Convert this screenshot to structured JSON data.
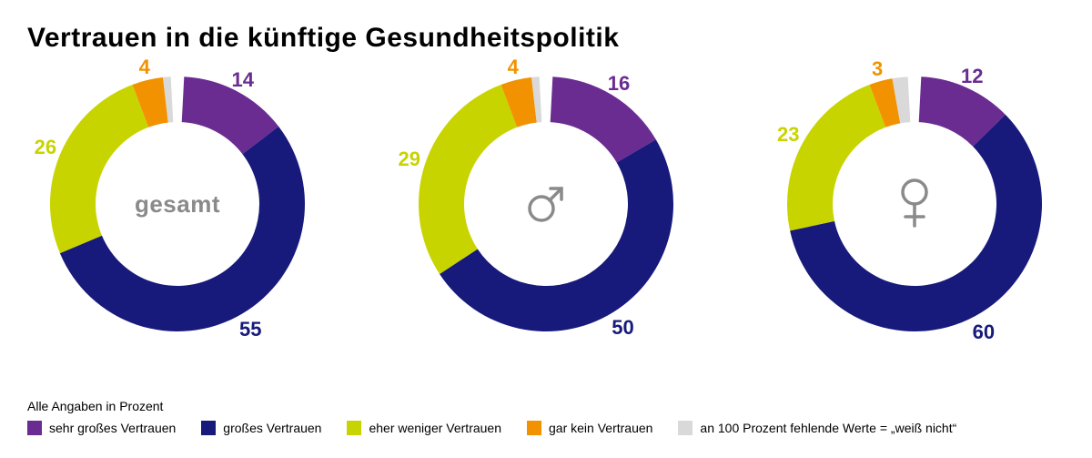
{
  "title": "Vertrauen in die künftige Gesundheitspolitik",
  "footnote": "Alle Angaben in Prozent",
  "colors": {
    "sehr_gross": "#6a2c91",
    "gross": "#171a7a",
    "eher_weniger": "#c8d400",
    "gar_kein": "#f39200",
    "weiss_nicht": "#d9d9d9",
    "center_text": "#8a8a8a",
    "icon": "#8a8a8a"
  },
  "chart": {
    "type": "donut",
    "outer_radius": 140,
    "inner_radius": 90,
    "start_angle_deg": -90,
    "gap_deg": 6,
    "label_fontsize": 22,
    "center_fontsize": 26,
    "size": 290
  },
  "legend": [
    {
      "key": "sehr_gross",
      "label": "sehr großes Vertrauen"
    },
    {
      "key": "gross",
      "label": "großes Vertrauen"
    },
    {
      "key": "eher_weniger",
      "label": "eher weniger Vertrauen"
    },
    {
      "key": "gar_kein",
      "label": "gar kein Vertrauen"
    },
    {
      "key": "weiss_nicht",
      "label": "an 100 Prozent fehlende Werte = „weiß nicht“"
    }
  ],
  "charts": [
    {
      "id": "gesamt",
      "center_type": "text",
      "center_text": "gesamt",
      "segments": [
        {
          "key": "sehr_gross",
          "value": 14,
          "show_label": true
        },
        {
          "key": "gross",
          "value": 55,
          "show_label": true
        },
        {
          "key": "eher_weniger",
          "value": 26,
          "show_label": true
        },
        {
          "key": "gar_kein",
          "value": 4,
          "show_label": true
        },
        {
          "key": "weiss_nicht",
          "value": 1,
          "show_label": false
        }
      ]
    },
    {
      "id": "male",
      "center_type": "male-icon",
      "segments": [
        {
          "key": "sehr_gross",
          "value": 16,
          "show_label": true
        },
        {
          "key": "gross",
          "value": 50,
          "show_label": true
        },
        {
          "key": "eher_weniger",
          "value": 29,
          "show_label": true
        },
        {
          "key": "gar_kein",
          "value": 4,
          "show_label": true
        },
        {
          "key": "weiss_nicht",
          "value": 1,
          "show_label": false
        }
      ]
    },
    {
      "id": "female",
      "center_type": "female-icon",
      "segments": [
        {
          "key": "sehr_gross",
          "value": 12,
          "show_label": true
        },
        {
          "key": "gross",
          "value": 60,
          "show_label": true
        },
        {
          "key": "eher_weniger",
          "value": 23,
          "show_label": true
        },
        {
          "key": "gar_kein",
          "value": 3,
          "show_label": true
        },
        {
          "key": "weiss_nicht",
          "value": 2,
          "show_label": false
        }
      ]
    }
  ]
}
